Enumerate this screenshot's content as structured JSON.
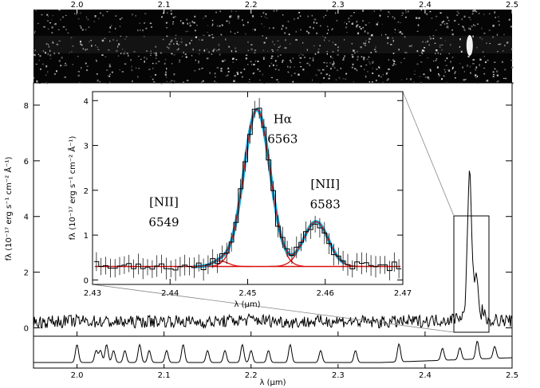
{
  "chart_data": [
    {
      "type": "heatmap",
      "description_free": true,
      "xlim": [
        1.95,
        2.5
      ],
      "x_ticks": [
        "2.0",
        "2.1",
        "2.2",
        "2.3",
        "2.4",
        "2.5"
      ],
      "x_tick_values": [
        2.0,
        2.1,
        2.2,
        2.3,
        2.4,
        2.5
      ]
    },
    {
      "type": "line",
      "xlim": [
        1.95,
        2.5
      ],
      "ylim": [
        -0.3,
        8.8
      ],
      "x_ticks": [
        "2.0",
        "2.1",
        "2.2",
        "2.3",
        "2.4",
        "2.5"
      ],
      "x_tick_values": [
        2.0,
        2.1,
        2.2,
        2.3,
        2.4,
        2.5
      ],
      "y_ticks": [
        "0",
        "2",
        "4",
        "6",
        "8"
      ],
      "y_tick_values": [
        0,
        2,
        4,
        6,
        8
      ],
      "ylabel": "fλ (10⁻¹⁷ erg s⁻¹ cm⁻² Å⁻¹)",
      "series": [
        {
          "x": [
            1.95,
            2.0,
            2.05,
            2.1,
            2.15,
            2.2,
            2.25,
            2.3,
            2.35,
            2.4,
            2.43,
            2.445,
            2.45,
            2.452,
            2.455,
            2.46,
            2.465,
            2.47,
            2.5
          ],
          "values": [
            0.2,
            0.25,
            0.2,
            0.25,
            0.2,
            0.3,
            0.2,
            0.25,
            0.2,
            0.25,
            0.3,
            0.5,
            1.5,
            5.5,
            3.5,
            1.5,
            0.8,
            0.3,
            0.25
          ]
        }
      ]
    },
    {
      "type": "line",
      "xlim": [
        1.95,
        2.5
      ],
      "x_ticks": [
        "2.0",
        "2.1",
        "2.2",
        "2.3",
        "2.4",
        "2.5"
      ],
      "x_tick_values": [
        2.0,
        2.1,
        2.2,
        2.3,
        2.4,
        2.5
      ],
      "xlabel": "λ (μm)",
      "series": [
        {
          "x": [
            1.95,
            2.0,
            2.02,
            2.03,
            2.04,
            2.06,
            2.08,
            2.15,
            2.2,
            2.25,
            2.3,
            2.4,
            2.43,
            2.45,
            2.47,
            2.5
          ],
          "values": [
            0.1,
            0.8,
            0.2,
            0.9,
            0.7,
            0.6,
            0.5,
            0.85,
            0.5,
            0.4,
            0.3,
            0.2,
            0.5,
            0.6,
            0.9,
            0.7
          ]
        }
      ]
    },
    {
      "type": "line",
      "xlim": [
        2.43,
        2.47
      ],
      "ylim": [
        -0.1,
        4.2
      ],
      "x_ticks": [
        "2.43",
        "2.44",
        "2.45",
        "2.46",
        "2.47"
      ],
      "x_tick_values": [
        2.43,
        2.44,
        2.45,
        2.46,
        2.47
      ],
      "y_ticks": [
        "0",
        "1",
        "2",
        "3",
        "4"
      ],
      "y_tick_values": [
        0,
        1,
        2,
        3,
        4
      ],
      "xlabel": "λ (μm)",
      "ylabel": "fλ (10⁻¹⁷ erg s⁻¹ cm⁻² Å⁻¹)",
      "annotations": [
        {
          "text": "Hα",
          "x": 2.4545,
          "y": 3.5
        },
        {
          "text": "6563",
          "x": 2.4545,
          "y": 3.05
        },
        {
          "text": "[NII]",
          "x": 2.4392,
          "y": 1.65
        },
        {
          "text": "6549",
          "x": 2.4392,
          "y": 1.2
        },
        {
          "text": "[NII]",
          "x": 2.46,
          "y": 2.05
        },
        {
          "text": "6583",
          "x": 2.46,
          "y": 1.6
        }
      ],
      "model": {
        "continuum": 0.3,
        "components": [
          {
            "name": "[NII] 6549",
            "center": 2.4465,
            "amplitude": 0.12,
            "sigma": 0.001
          },
          {
            "name": "Hα 6563",
            "center": 2.4512,
            "amplitude": 3.5,
            "sigma": 0.0017
          },
          {
            "name": "[NII] 6583",
            "center": 2.4588,
            "amplitude": 1.0,
            "sigma": 0.0016
          }
        ]
      },
      "colors": {
        "data": "#000000",
        "fit": "#1ab2e0",
        "model": "#dd1111"
      }
    }
  ]
}
